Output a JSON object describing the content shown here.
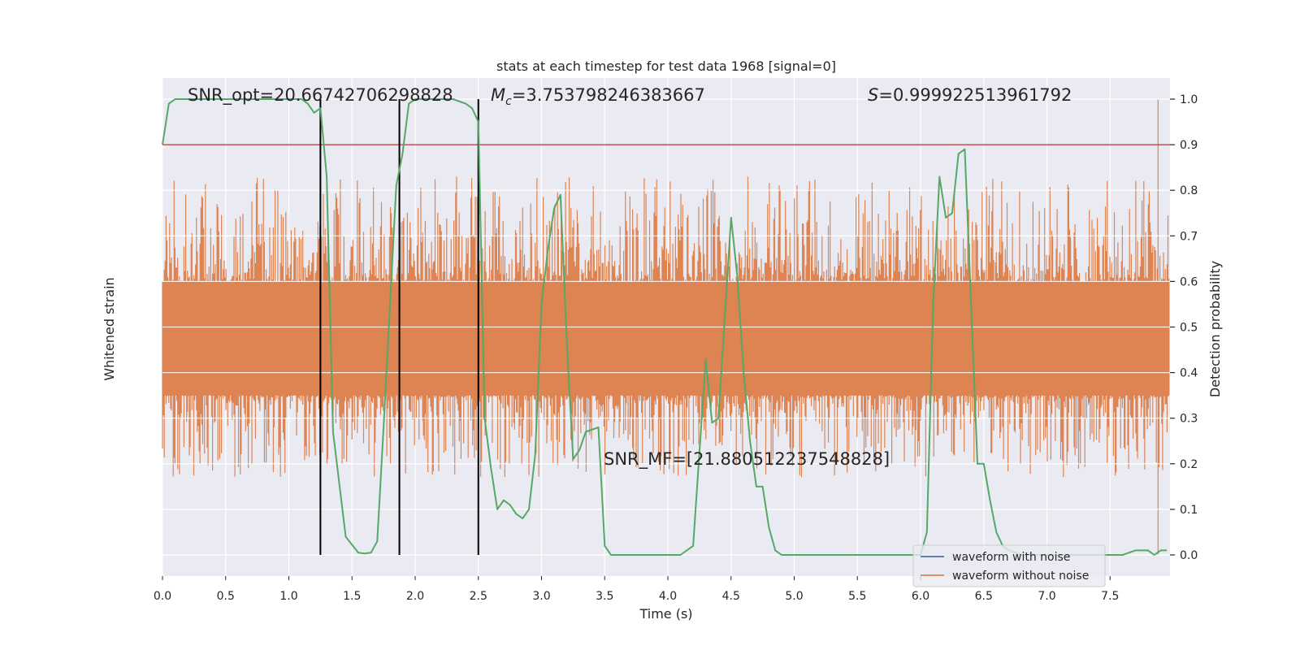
{
  "chart_data": {
    "type": "line",
    "title": "stats at each timestep for test data 1968 [signal=0]",
    "xlabel": "Time (s)",
    "ylabel_left": "Whitened strain",
    "ylabel_right": "Detection probability",
    "xlim": [
      0,
      8
    ],
    "ylim_right": [
      -0.05,
      1.05
    ],
    "x_ticks": [
      "0.0",
      "0.5",
      "1.0",
      "1.5",
      "2.0",
      "2.5",
      "3.0",
      "3.5",
      "4.0",
      "4.5",
      "5.0",
      "5.5",
      "6.0",
      "6.5",
      "7.0",
      "7.5"
    ],
    "x_tick_values": [
      0,
      0.5,
      1,
      1.5,
      2,
      2.5,
      3,
      3.5,
      4,
      4.5,
      5,
      5.5,
      6,
      6.5,
      7,
      7.5
    ],
    "y_right_ticks": [
      "0.0",
      "0.1",
      "0.2",
      "0.3",
      "0.4",
      "0.5",
      "0.6",
      "0.7",
      "0.8",
      "0.9",
      "1.0"
    ],
    "y_right_tick_values": [
      0,
      0.1,
      0.2,
      0.3,
      0.4,
      0.5,
      0.6,
      0.7,
      0.8,
      0.9,
      1.0
    ],
    "grid": true,
    "legend": {
      "placement": "lower-right",
      "entries": [
        {
          "label": "waveform with noise",
          "color": "#4c72b0"
        },
        {
          "label": "waveform without noise",
          "color": "#dd8452"
        }
      ]
    },
    "annotations": {
      "snr_opt": "SNR_opt=20.66742706298828",
      "mc_symbol": "M",
      "mc_sub": "c",
      "mc_value": "=3.753798246383667",
      "s_symbol": "S",
      "s_value": "=0.999922513961792",
      "snr_mf": "SNR_MF=[21.880512237548828]"
    },
    "threshold": {
      "y": 0.9,
      "color": "#c44e52"
    },
    "vlines": [
      1.25,
      1.875,
      2.5
    ],
    "noise_band": {
      "center": 0.5,
      "core_low": 0.35,
      "core_high": 0.6,
      "spike_min": 0.17,
      "spike_max": 0.83,
      "end_spike_x": 7.88,
      "end_spike_low": 0.0,
      "end_spike_high": 1.0
    },
    "series": [
      {
        "name": "detection probability",
        "color": "#55a868",
        "x": [
          0,
          0.05,
          0.1,
          0.2,
          0.5,
          1.0,
          1.1,
          1.15,
          1.2,
          1.25,
          1.3,
          1.35,
          1.45,
          1.55,
          1.6,
          1.65,
          1.7,
          1.75,
          1.85,
          1.9,
          1.95,
          2.0,
          2.1,
          2.3,
          2.4,
          2.45,
          2.5,
          2.55,
          2.6,
          2.65,
          2.7,
          2.75,
          2.8,
          2.85,
          2.9,
          2.95,
          3.0,
          3.05,
          3.1,
          3.15,
          3.2,
          3.25,
          3.3,
          3.35,
          3.45,
          3.5,
          3.55,
          3.7,
          4.0,
          4.1,
          4.2,
          4.3,
          4.35,
          4.4,
          4.5,
          4.55,
          4.6,
          4.65,
          4.7,
          4.75,
          4.8,
          4.85,
          4.9,
          5.0,
          5.2,
          5.5,
          5.7,
          5.8,
          5.9,
          6.0,
          6.05,
          6.1,
          6.15,
          6.2,
          6.25,
          6.3,
          6.35,
          6.4,
          6.45,
          6.5,
          6.55,
          6.6,
          6.65,
          6.7,
          6.8,
          7.0,
          7.2,
          7.4,
          7.5,
          7.6,
          7.7,
          7.8,
          7.85,
          7.9,
          7.95
        ],
        "values": [
          0.9,
          0.99,
          1.0,
          1.0,
          1.0,
          1.0,
          1.0,
          0.99,
          0.97,
          0.98,
          0.83,
          0.27,
          0.04,
          0.005,
          0.003,
          0.005,
          0.03,
          0.28,
          0.81,
          0.88,
          0.99,
          1.0,
          1.0,
          1.0,
          0.99,
          0.98,
          0.95,
          0.3,
          0.19,
          0.1,
          0.12,
          0.11,
          0.09,
          0.08,
          0.1,
          0.22,
          0.55,
          0.67,
          0.76,
          0.79,
          0.47,
          0.21,
          0.23,
          0.27,
          0.28,
          0.02,
          0.0,
          0.0,
          0.0,
          0.0,
          0.02,
          0.43,
          0.29,
          0.3,
          0.74,
          0.61,
          0.4,
          0.25,
          0.15,
          0.15,
          0.06,
          0.01,
          0.0,
          0.0,
          0.0,
          0.0,
          0.0,
          0.0,
          0.0,
          0.0,
          0.05,
          0.55,
          0.83,
          0.74,
          0.75,
          0.88,
          0.89,
          0.55,
          0.2,
          0.2,
          0.12,
          0.05,
          0.02,
          0.01,
          0.0,
          0.0,
          0.0,
          0.0,
          0.0,
          0.0,
          0.01,
          0.01,
          0.0,
          0.01,
          0.01
        ]
      }
    ]
  }
}
